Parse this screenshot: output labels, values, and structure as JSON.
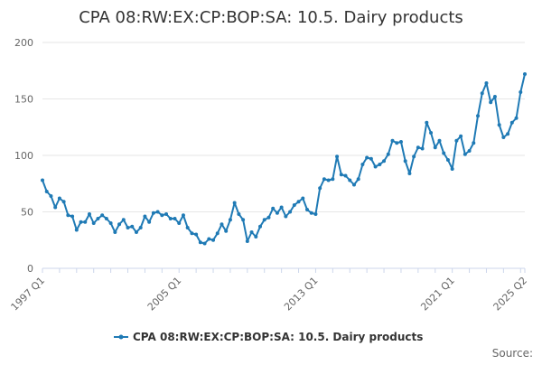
{
  "chart_data": {
    "type": "line",
    "title": "CPA 08:RW:EX:CP:BOP:SA: 10.5. Dairy products",
    "xlabel": "",
    "ylabel": "",
    "ylim": [
      0,
      200
    ],
    "yticks": [
      0,
      50,
      100,
      150,
      200
    ],
    "grid": true,
    "legend_position": "bottom",
    "source_label": "Source:",
    "x_tick_labels": [
      "1997 Q1",
      "2005 Q1",
      "2013 Q1",
      "2021 Q1",
      "2025 Q2"
    ],
    "x_start_year": 1997,
    "x_start_quarter": 1,
    "series_color": "#1f7ab5",
    "series": [
      {
        "name": "CPA 08:RW:EX:CP:BOP:SA: 10.5. Dairy products",
        "values": [
          78,
          68,
          64,
          54,
          62,
          59,
          47,
          46,
          34,
          41,
          41,
          48,
          40,
          44,
          47,
          44,
          40,
          32,
          39,
          43,
          36,
          37,
          32,
          36,
          46,
          41,
          49,
          50,
          47,
          48,
          44,
          44,
          40,
          47,
          36,
          31,
          30,
          23,
          22,
          26,
          25,
          31,
          39,
          33,
          43,
          58,
          48,
          43,
          24,
          32,
          28,
          37,
          43,
          45,
          53,
          49,
          54,
          46,
          50,
          56,
          59,
          62,
          52,
          49,
          48,
          71,
          79,
          78,
          79,
          99,
          83,
          82,
          78,
          74,
          79,
          92,
          98,
          97,
          90,
          92,
          95,
          101,
          113,
          111,
          112,
          95,
          84,
          99,
          107,
          106,
          129,
          120,
          107,
          113,
          102,
          96,
          88,
          113,
          117,
          101,
          104,
          111,
          135,
          155,
          164,
          147,
          152,
          127,
          116,
          119,
          129,
          133,
          156,
          172
        ]
      }
    ]
  }
}
